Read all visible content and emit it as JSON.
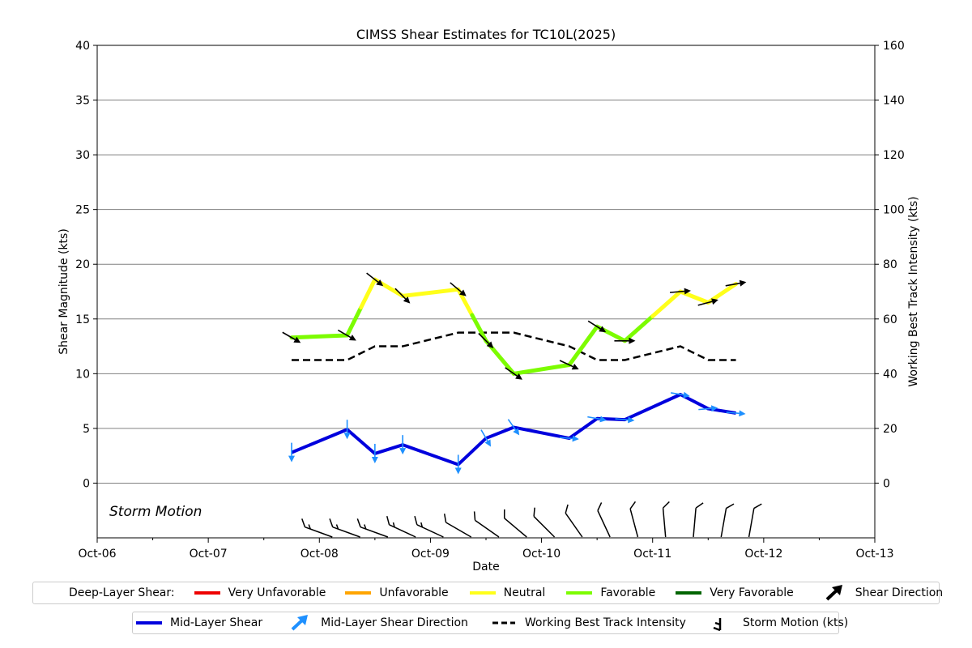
{
  "chart_data": {
    "type": "line",
    "title": "CIMSS Shear Estimates for TC10L(2025)",
    "xlabel": "Date",
    "ylabel": "Shear Magnitude (kts)",
    "ylabel_right": "Working Best Track Intensity (kts)",
    "x_ticks": [
      "Oct-06",
      "Oct-07",
      "Oct-08",
      "Oct-09",
      "Oct-10",
      "Oct-11",
      "Oct-12",
      "Oct-13"
    ],
    "xlim": [
      0,
      7
    ],
    "ylim": [
      -5,
      40
    ],
    "y_ticks": [
      0,
      5,
      10,
      15,
      20,
      25,
      30,
      35,
      40
    ],
    "ylim_right": [
      -20,
      160
    ],
    "y_ticks_right": [
      0,
      20,
      40,
      60,
      80,
      100,
      120,
      140,
      160
    ],
    "grid": "horizontal",
    "annotation": "Storm Motion",
    "colors": {
      "very_unfavorable": "#ee0000",
      "unfavorable": "#ffa500",
      "neutral": "#ffff1a",
      "favorable": "#7cfc00",
      "very_favorable": "#006400",
      "mid_layer": "#0000dd",
      "mid_arrow": "#1e90ff",
      "best_track": "#000000"
    },
    "series": [
      {
        "name": "Deep-Layer Shear",
        "x": [
          1.75,
          2.25,
          2.5,
          2.75,
          3.25,
          3.5,
          3.75,
          4.25,
          4.5,
          4.75,
          5.25,
          5.5,
          5.75
        ],
        "values": [
          13.3,
          13.5,
          18.6,
          17.1,
          17.7,
          13.0,
          10.0,
          10.8,
          14.3,
          13.0,
          17.5,
          16.5,
          18.2
        ],
        "category": [
          "favorable",
          "favorable",
          "neutral",
          "neutral",
          "neutral",
          "favorable",
          "favorable",
          "favorable",
          "favorable",
          "favorable",
          "neutral",
          "neutral",
          "neutral"
        ],
        "direction_deg": [
          120,
          120,
          128,
          135,
          130,
          135,
          125,
          115,
          122,
          90,
          85,
          75,
          80
        ]
      },
      {
        "name": "Mid-Layer Shear",
        "x": [
          1.75,
          2.25,
          2.5,
          2.75,
          3.25,
          3.5,
          3.75,
          4.25,
          4.5,
          4.75,
          5.25,
          5.5,
          5.75
        ],
        "values": [
          2.8,
          4.9,
          2.7,
          3.5,
          1.7,
          4.1,
          5.1,
          4.1,
          5.9,
          5.8,
          8.1,
          6.8,
          6.4
        ],
        "direction_deg": [
          180,
          180,
          180,
          180,
          180,
          150,
          145,
          95,
          100,
          95,
          100,
          85,
          95
        ]
      },
      {
        "name": "Working Best Track Intensity",
        "x": [
          1.75,
          2.25,
          2.5,
          2.75,
          3.25,
          3.5,
          3.75,
          4.25,
          4.5,
          4.75,
          5.25,
          5.5,
          5.75
        ],
        "values": [
          45,
          45,
          50,
          50,
          55,
          55,
          55,
          50,
          45,
          45,
          50,
          45,
          45
        ]
      },
      {
        "name": "Storm Motion (kts)",
        "x": [
          2.0,
          2.25,
          2.5,
          2.75,
          3.0,
          3.25,
          3.5,
          3.75,
          4.0,
          4.25,
          4.5,
          4.75,
          5.0,
          5.25,
          5.5,
          5.75
        ],
        "values": [
          17,
          18,
          17,
          15,
          15,
          13,
          11,
          10,
          10,
          10,
          10,
          10,
          11,
          11,
          12,
          13
        ],
        "direction_deg": [
          110,
          110,
          110,
          115,
          115,
          120,
          125,
          130,
          135,
          145,
          155,
          165,
          175,
          185,
          190,
          190
        ]
      }
    ]
  },
  "legend": {
    "deep_layer_label": "Deep-Layer Shear:",
    "very_unfavorable": "Very Unfavorable",
    "unfavorable": "Unfavorable",
    "neutral": "Neutral",
    "favorable": "Favorable",
    "very_favorable": "Very Favorable",
    "shear_direction": "Shear Direction",
    "mid_layer": "Mid-Layer Shear",
    "mid_layer_direction": "Mid-Layer Shear Direction",
    "best_track": "Working Best Track Intensity",
    "storm_motion": "Storm Motion (kts)"
  }
}
